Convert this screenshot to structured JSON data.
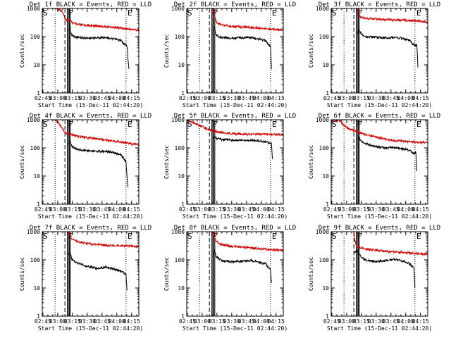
{
  "colors": {
    "events": "#000000",
    "lld": "#d40000",
    "axis": "#000000",
    "background": "#ffffff"
  },
  "shared": {
    "ylabel": "Counts/sec",
    "xlabel": "Start Time (15-Dec-11 02:44:20)",
    "y_ticks": [
      "1",
      "10",
      "100",
      "1000"
    ],
    "x_ticks": [
      "02:45",
      "03:00",
      "03:15",
      "03:30",
      "03:45",
      "04:00",
      "04:15"
    ],
    "x_tick_minutes": [
      0.67,
      15.67,
      30.67,
      45.67,
      60.67,
      75.67,
      90.67
    ],
    "xlim_minutes": [
      0,
      98
    ],
    "ylim": [
      1,
      1000
    ],
    "y_scale": "log",
    "markers": {
      "S_label": "S",
      "F_label": "F",
      "E_label": "E",
      "S_minute": 0.5,
      "dotted_minute": 13.0,
      "dashed_minute": 23.0,
      "F_minutes": [
        25.5,
        26.5,
        27.5,
        28.5
      ],
      "E_minute": 85.0
    }
  },
  "chart_data": [
    {
      "title": "Det 1f BLACK = Events, RED = LLD",
      "type": "line",
      "series": [
        {
          "color": "#d40000",
          "x": [
            13,
            17,
            20,
            22,
            23,
            25,
            28,
            30,
            35,
            45,
            55,
            65,
            75,
            85,
            98
          ],
          "y": [
            1000,
            950,
            800,
            550,
            420,
            380,
            380,
            320,
            270,
            250,
            240,
            225,
            210,
            190,
            170
          ]
        },
        {
          "color": "#000000",
          "x": [
            27,
            28,
            30,
            35,
            45,
            55,
            65,
            70,
            75,
            80,
            82,
            85,
            86,
            87,
            88
          ],
          "y": [
            160,
            200,
            110,
            95,
            88,
            90,
            95,
            85,
            80,
            72,
            60,
            50,
            48,
            15,
            7
          ]
        }
      ]
    },
    {
      "title": "Det 2f BLACK = Events, RED = LLD",
      "type": "line",
      "series": [
        {
          "color": "#d40000",
          "x": [
            26,
            27,
            28,
            29,
            30,
            35,
            45,
            55,
            65,
            75,
            85,
            98
          ],
          "y": [
            600,
            1000,
            700,
            450,
            330,
            260,
            230,
            220,
            210,
            200,
            185,
            170
          ]
        },
        {
          "color": "#000000",
          "x": [
            27,
            28,
            30,
            35,
            45,
            55,
            65,
            70,
            75,
            80,
            82,
            84,
            85,
            86
          ],
          "y": [
            160,
            200,
            110,
            95,
            88,
            90,
            95,
            85,
            80,
            72,
            60,
            50,
            45,
            7
          ]
        }
      ]
    },
    {
      "title": "Det 3f BLACK = Events, RED = LLD",
      "type": "line",
      "series": [
        {
          "color": "#d40000",
          "x": [
            26,
            27,
            28,
            29,
            30,
            35,
            45,
            55,
            65,
            75,
            85,
            98
          ],
          "y": [
            1000,
            1000,
            700,
            550,
            470,
            440,
            420,
            400,
            390,
            380,
            370,
            330
          ]
        },
        {
          "color": "#000000",
          "x": [
            27,
            28,
            30,
            35,
            45,
            55,
            65,
            70,
            75,
            80,
            82,
            84,
            85,
            86,
            87,
            88
          ],
          "y": [
            130,
            160,
            130,
            100,
            95,
            90,
            95,
            88,
            82,
            75,
            60,
            50,
            50,
            50,
            50,
            8
          ]
        }
      ]
    },
    {
      "title": "Det 4f BLACK = Events, RED = LLD",
      "type": "line",
      "series": [
        {
          "color": "#d40000",
          "x": [
            13,
            16,
            20,
            22,
            23,
            25,
            28,
            30,
            35,
            45,
            55,
            65,
            75,
            85,
            98
          ],
          "y": [
            1000,
            800,
            500,
            400,
            350,
            320,
            320,
            300,
            260,
            230,
            210,
            190,
            170,
            150,
            130
          ]
        },
        {
          "color": "#000000",
          "x": [
            27,
            28,
            30,
            35,
            45,
            55,
            65,
            70,
            75,
            80,
            82,
            84,
            85,
            86,
            87
          ],
          "y": [
            140,
            170,
            110,
            90,
            80,
            75,
            75,
            70,
            65,
            55,
            45,
            35,
            30,
            10,
            4
          ]
        }
      ]
    },
    {
      "title": "Det 5f BLACK = Events, RED = LLD",
      "type": "line",
      "series": [
        {
          "color": "#d40000",
          "x": [
            0,
            3,
            6,
            10,
            14,
            18,
            22,
            26,
            30,
            35,
            45,
            55,
            65,
            75,
            85,
            98
          ],
          "y": [
            1000,
            900,
            800,
            700,
            600,
            520,
            460,
            410,
            380,
            350,
            320,
            310,
            305,
            300,
            300,
            290
          ]
        },
        {
          "color": "#000000",
          "x": [
            27,
            28,
            30,
            35,
            45,
            55,
            65,
            70,
            75,
            80,
            82,
            85,
            86,
            87
          ],
          "y": [
            230,
            260,
            220,
            200,
            190,
            185,
            185,
            180,
            175,
            170,
            160,
            150,
            140,
            40
          ]
        }
      ]
    },
    {
      "title": "Det 6f BLACK = Events, RED = LLD",
      "type": "line",
      "series": [
        {
          "color": "#d40000",
          "x": [
            0,
            3,
            6,
            8,
            10,
            14,
            18,
            22,
            26,
            30,
            35,
            45,
            55,
            65,
            75,
            85,
            98
          ],
          "y": [
            1000,
            1000,
            900,
            1000,
            800,
            600,
            480,
            430,
            380,
            340,
            300,
            250,
            200,
            180,
            170,
            160,
            155
          ]
        },
        {
          "color": "#000000",
          "x": [
            27,
            28,
            30,
            35,
            45,
            55,
            65,
            70,
            75,
            80,
            82,
            84,
            85,
            86,
            87
          ],
          "y": [
            200,
            260,
            180,
            140,
            110,
            100,
            105,
            95,
            90,
            80,
            70,
            65,
            65,
            70,
            15
          ]
        }
      ]
    },
    {
      "title": "Det 7f BLACK = Events, RED = LLD",
      "type": "line",
      "series": [
        {
          "color": "#d40000",
          "x": [
            26,
            27,
            28,
            29,
            30,
            35,
            45,
            55,
            65,
            75,
            85,
            98
          ],
          "y": [
            900,
            1000,
            800,
            650,
            550,
            450,
            380,
            350,
            330,
            320,
            310,
            300
          ]
        },
        {
          "color": "#000000",
          "x": [
            27,
            28,
            30,
            35,
            45,
            55,
            65,
            70,
            75,
            80,
            82,
            84,
            85,
            86
          ],
          "y": [
            150,
            180,
            110,
            80,
            60,
            50,
            55,
            50,
            45,
            40,
            35,
            32,
            30,
            8
          ]
        }
      ]
    },
    {
      "title": "Det 8f BLACK = Events, RED = LLD",
      "type": "line",
      "series": [
        {
          "color": "#d40000",
          "x": [
            26,
            27,
            28,
            29,
            30,
            35,
            45,
            55,
            65,
            75,
            85,
            98
          ],
          "y": [
            700,
            1000,
            700,
            550,
            450,
            350,
            300,
            280,
            270,
            250,
            230,
            220
          ]
        },
        {
          "color": "#000000",
          "x": [
            27,
            28,
            30,
            35,
            45,
            55,
            65,
            70,
            75,
            80,
            82,
            84,
            85,
            86
          ],
          "y": [
            160,
            220,
            130,
            95,
            85,
            90,
            95,
            88,
            80,
            72,
            60,
            50,
            45,
            15
          ]
        }
      ]
    },
    {
      "title": "Det 9f BLACK = Events, RED = LLD",
      "type": "line",
      "series": [
        {
          "color": "#d40000",
          "x": [
            23,
            24,
            26,
            28,
            30,
            35,
            45,
            55,
            65,
            75,
            85,
            98
          ],
          "y": [
            1000,
            500,
            300,
            290,
            270,
            240,
            220,
            200,
            190,
            180,
            170,
            160
          ]
        },
        {
          "color": "#000000",
          "x": [
            23,
            24,
            26,
            28,
            30,
            35,
            45,
            55,
            65,
            70,
            75,
            80,
            82,
            84,
            85
          ],
          "y": [
            170,
            190,
            210,
            170,
            130,
            95,
            85,
            95,
            105,
            95,
            85,
            70,
            60,
            50,
            10
          ]
        }
      ]
    }
  ]
}
